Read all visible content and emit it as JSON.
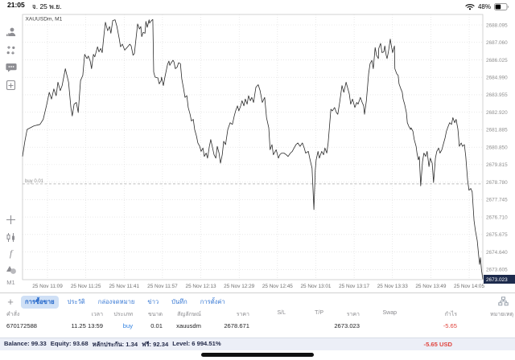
{
  "status_bar": {
    "time": "21:05",
    "date": "จ. 25 พ.ย.",
    "battery_pct": "48%"
  },
  "chart": {
    "symbol_label": "XAUUSDm, M1",
    "position_line_label": "buy 0.01",
    "current_price_badge": "2673.023"
  },
  "chart_data": {
    "type": "line",
    "title": "XAUUSDm, M1",
    "ylabel": "price",
    "xlabel": "time",
    "grid": true,
    "ylim": [
      2672.9,
      2688.75
    ],
    "y_ticks": [
      "2688.095",
      "2687.060",
      "2686.025",
      "2684.990",
      "2683.955",
      "2682.920",
      "2681.885",
      "2680.850",
      "2679.815",
      "2678.780",
      "2677.745",
      "2676.710",
      "2675.675",
      "2674.640",
      "2673.605"
    ],
    "x_ticks": [
      "25 Nov 11:09",
      "25 Nov 11:25",
      "25 Nov 11:41",
      "25 Nov 11:57",
      "25 Nov 12:13",
      "25 Nov 12:29",
      "25 Nov 12:45",
      "25 Nov 13:01",
      "25 Nov 13:17",
      "25 Nov 13:33",
      "25 Nov 13:49",
      "25 Nov 14:05"
    ],
    "annotations": [
      {
        "name": "open-position-line",
        "label": "buy 0.01",
        "price": 2678.671,
        "style": "dashed"
      },
      {
        "name": "current-price",
        "label": "2673.023",
        "price": 2673.023,
        "style": "badge"
      }
    ],
    "series": [
      {
        "name": "XAUUSDm M1 close",
        "color": "#2b2b2b",
        "points": [
          [
            0,
            2680.3
          ],
          [
            0.005,
            2681.2
          ],
          [
            0.01,
            2681.9
          ],
          [
            0.017,
            2682
          ],
          [
            0.024,
            2682.1
          ],
          [
            0.031,
            2682.15
          ],
          [
            0.038,
            2682.2
          ],
          [
            0.045,
            2682.5
          ],
          [
            0.052,
            2683.3
          ],
          [
            0.058,
            2684.1
          ],
          [
            0.063,
            2683.7
          ],
          [
            0.068,
            2684.3
          ],
          [
            0.073,
            2683.9
          ],
          [
            0.077,
            2684.7
          ],
          [
            0.082,
            2684.2
          ],
          [
            0.086,
            2684.5
          ],
          [
            0.093,
            2685.5
          ],
          [
            0.1,
            2684.7
          ],
          [
            0.105,
            2683.2
          ],
          [
            0.108,
            2682.7
          ],
          [
            0.112,
            2683.4
          ],
          [
            0.117,
            2683.5
          ],
          [
            0.121,
            2682.9
          ],
          [
            0.126,
            2684.8
          ],
          [
            0.131,
            2685.1
          ],
          [
            0.135,
            2686.35
          ],
          [
            0.14,
            2686.1
          ],
          [
            0.143,
            2686.25
          ],
          [
            0.147,
            2685.95
          ],
          [
            0.15,
            2685.5
          ],
          [
            0.154,
            2686.35
          ],
          [
            0.157,
            2686.2
          ],
          [
            0.163,
            2686.8
          ],
          [
            0.166,
            2686.5
          ],
          [
            0.17,
            2686.7
          ],
          [
            0.173,
            2686.45
          ],
          [
            0.177,
            2687.5
          ],
          [
            0.18,
            2688.25
          ],
          [
            0.185,
            2687.75
          ],
          [
            0.189,
            2688
          ],
          [
            0.192,
            2687.6
          ],
          [
            0.196,
            2688.35
          ],
          [
            0.201,
            2688.4
          ],
          [
            0.205,
            2688
          ],
          [
            0.21,
            2687.3
          ],
          [
            0.213,
            2686.8
          ],
          [
            0.217,
            2686.95
          ],
          [
            0.222,
            2686.6
          ],
          [
            0.227,
            2686.75
          ],
          [
            0.233,
            2686.95
          ],
          [
            0.236,
            2686.85
          ],
          [
            0.24,
            2686.3
          ],
          [
            0.243,
            2686.4
          ],
          [
            0.247,
            2687.4
          ],
          [
            0.25,
            2688.15
          ],
          [
            0.254,
            2687.85
          ],
          [
            0.257,
            2688
          ],
          [
            0.259,
            2687.4
          ],
          [
            0.262,
            2687.65
          ],
          [
            0.266,
            2687.6
          ],
          [
            0.268,
            2688.3
          ],
          [
            0.271,
            2687.95
          ],
          [
            0.275,
            2688.4
          ],
          [
            0.276,
            2688.2
          ],
          [
            0.28,
            2688.35
          ],
          [
            0.283,
            2688.42
          ],
          [
            0.285,
            2685.3
          ],
          [
            0.288,
            2685
          ],
          [
            0.294,
            2684.95
          ],
          [
            0.297,
            2684.6
          ],
          [
            0.301,
            2684.8
          ],
          [
            0.302,
            2685
          ],
          [
            0.306,
            2684.5
          ],
          [
            0.309,
            2684.95
          ],
          [
            0.315,
            2685.75
          ],
          [
            0.318,
            2685.95
          ],
          [
            0.32,
            2685.7
          ],
          [
            0.323,
            2685.85
          ],
          [
            0.327,
            2686
          ],
          [
            0.329,
            2685.9
          ],
          [
            0.332,
            2685.5
          ],
          [
            0.336,
            2685.6
          ],
          [
            0.339,
            2685.85
          ],
          [
            0.343,
            2685.8
          ],
          [
            0.346,
            2684.9
          ],
          [
            0.35,
            2684.3
          ],
          [
            0.353,
            2683.8
          ],
          [
            0.357,
            2683.9
          ],
          [
            0.36,
            2683.2
          ],
          [
            0.364,
            2682.8
          ],
          [
            0.367,
            2682.4
          ],
          [
            0.371,
            2682.5
          ],
          [
            0.374,
            2681.9
          ],
          [
            0.378,
            2681.5
          ],
          [
            0.381,
            2681.1
          ],
          [
            0.385,
            2680.9
          ],
          [
            0.388,
            2680.6
          ],
          [
            0.392,
            2680.8
          ],
          [
            0.395,
            2680.3
          ],
          [
            0.399,
            2680.5
          ],
          [
            0.402,
            2680.2
          ],
          [
            0.406,
            2680.9
          ],
          [
            0.409,
            2681.3
          ],
          [
            0.413,
            2680.8
          ],
          [
            0.416,
            2680.4
          ],
          [
            0.42,
            2680.2
          ],
          [
            0.423,
            2680.9
          ],
          [
            0.427,
            2680.5
          ],
          [
            0.43,
            2679.9
          ],
          [
            0.434,
            2680.4
          ],
          [
            0.437,
            2681.2
          ],
          [
            0.441,
            2681
          ],
          [
            0.446,
            2681.9
          ],
          [
            0.451,
            2682.3
          ],
          [
            0.456,
            2682.2
          ],
          [
            0.46,
            2682.7
          ],
          [
            0.463,
            2683
          ],
          [
            0.467,
            2683.3
          ],
          [
            0.47,
            2683
          ],
          [
            0.474,
            2683.3
          ],
          [
            0.477,
            2683.6
          ],
          [
            0.481,
            2683.3
          ],
          [
            0.484,
            2683.7
          ],
          [
            0.488,
            2683.4
          ],
          [
            0.491,
            2683.9
          ],
          [
            0.495,
            2683.6
          ],
          [
            0.498,
            2683.8
          ],
          [
            0.502,
            2683.5
          ],
          [
            0.507,
            2684.4
          ],
          [
            0.512,
            2684.55
          ],
          [
            0.516,
            2684.2
          ],
          [
            0.521,
            2683.5
          ],
          [
            0.526,
            2683.8
          ],
          [
            0.53,
            2682.6
          ],
          [
            0.535,
            2682
          ],
          [
            0.538,
            2680.7
          ],
          [
            0.542,
            2681
          ],
          [
            0.545,
            2680.4
          ],
          [
            0.551,
            2680.7
          ],
          [
            0.556,
            2680.2
          ],
          [
            0.559,
            2680.4
          ],
          [
            0.563,
            2680.5
          ],
          [
            0.568,
            2680.5
          ],
          [
            0.573,
            2680.4
          ],
          [
            0.577,
            2680.3
          ],
          [
            0.582,
            2680.5
          ],
          [
            0.586,
            2680.6
          ],
          [
            0.589,
            2680.75
          ],
          [
            0.594,
            2681
          ],
          [
            0.598,
            2681.1
          ],
          [
            0.603,
            2680.9
          ],
          [
            0.608,
            2681.1
          ],
          [
            0.612,
            2680.8
          ],
          [
            0.615,
            2680.5
          ],
          [
            0.621,
            2680.6
          ],
          [
            0.624,
            2680.2
          ],
          [
            0.629,
            2679.6
          ],
          [
            0.633,
            2677.15
          ],
          [
            0.636,
            2679.5
          ],
          [
            0.638,
            2680.1
          ],
          [
            0.642,
            2680.6
          ],
          [
            0.645,
            2680.2
          ],
          [
            0.65,
            2680.6
          ],
          [
            0.654,
            2680.4
          ],
          [
            0.657,
            2680.8
          ],
          [
            0.661,
            2680.5
          ],
          [
            0.664,
            2681.1
          ],
          [
            0.67,
            2683.1
          ],
          [
            0.673,
            2683
          ],
          [
            0.678,
            2683.2
          ],
          [
            0.682,
            2682.9
          ],
          [
            0.685,
            2682.8
          ],
          [
            0.689,
            2683.5
          ],
          [
            0.694,
            2684.5
          ],
          [
            0.698,
            2684.1
          ],
          [
            0.703,
            2684.7
          ],
          [
            0.706,
            2684.4
          ],
          [
            0.71,
            2684
          ],
          [
            0.713,
            2683.4
          ],
          [
            0.717,
            2683.7
          ],
          [
            0.722,
            2683.2
          ],
          [
            0.726,
            2683.5
          ],
          [
            0.729,
            2683.4
          ],
          [
            0.734,
            2683.8
          ],
          [
            0.738,
            2683.5
          ],
          [
            0.741,
            2683.3
          ],
          [
            0.743,
            2682.8
          ],
          [
            0.747,
            2683.6
          ],
          [
            0.752,
            2685.2
          ],
          [
            0.755,
            2685.8
          ],
          [
            0.759,
            2686
          ],
          [
            0.762,
            2685.5
          ],
          [
            0.766,
            2686.75
          ],
          [
            0.769,
            2686.3
          ],
          [
            0.773,
            2686.1
          ],
          [
            0.774,
            2686.7
          ],
          [
            0.778,
            2687
          ],
          [
            0.781,
            2686.45
          ],
          [
            0.785,
            2686.5
          ],
          [
            0.787,
            2686.85
          ],
          [
            0.79,
            2686.3
          ],
          [
            0.792,
            2686.1
          ],
          [
            0.795,
            2686.5
          ],
          [
            0.799,
            2687.25
          ],
          [
            0.801,
            2686.9
          ],
          [
            0.804,
            2686.45
          ],
          [
            0.808,
            2686.85
          ],
          [
            0.809,
            2685.5
          ],
          [
            0.813,
            2685.2
          ],
          [
            0.816,
            2685.1
          ],
          [
            0.818,
            2684.6
          ],
          [
            0.822,
            2684.3
          ],
          [
            0.825,
            2684.1
          ],
          [
            0.827,
            2683.7
          ],
          [
            0.83,
            2683.4
          ],
          [
            0.834,
            2682.9
          ],
          [
            0.836,
            2682.3
          ],
          [
            0.839,
            2682.1
          ],
          [
            0.843,
            2681.9
          ],
          [
            0.844,
            2682
          ],
          [
            0.848,
            2681.8
          ],
          [
            0.851,
            2681.3
          ],
          [
            0.855,
            2680.9
          ],
          [
            0.857,
            2680.5
          ],
          [
            0.86,
            2680.1
          ],
          [
            0.862,
            2680.3
          ],
          [
            0.865,
            2678.55
          ],
          [
            0.869,
            2680
          ],
          [
            0.872,
            2680.5
          ],
          [
            0.876,
            2680.3
          ],
          [
            0.879,
            2680.6
          ],
          [
            0.883,
            2679.7
          ],
          [
            0.886,
            2680.2
          ],
          [
            0.89,
            2679.9
          ],
          [
            0.893,
            2678.75
          ],
          [
            0.897,
            2680.2
          ],
          [
            0.9,
            2680.6
          ],
          [
            0.904,
            2680.8
          ],
          [
            0.907,
            2680.5
          ],
          [
            0.911,
            2680.7
          ],
          [
            0.914,
            2681
          ],
          [
            0.918,
            2681.4
          ],
          [
            0.921,
            2681.8
          ],
          [
            0.925,
            2682.1
          ],
          [
            0.928,
            2682.3
          ],
          [
            0.932,
            2682.2
          ],
          [
            0.935,
            2682.6
          ],
          [
            0.939,
            2682.3
          ],
          [
            0.942,
            2682.5
          ],
          [
            0.946,
            2681.9
          ],
          [
            0.949,
            2680.9
          ],
          [
            0.953,
            2681.1
          ],
          [
            0.956,
            2680.9
          ],
          [
            0.96,
            2681
          ],
          [
            0.963,
            2680.3
          ],
          [
            0.967,
            2678.9
          ],
          [
            0.97,
            2678.3
          ],
          [
            0.974,
            2678.4
          ],
          [
            0.977,
            2678.2
          ],
          [
            0.981,
            2676.5
          ],
          [
            0.984,
            2675.9
          ],
          [
            0.988,
            2675.3
          ],
          [
            0.991,
            2674.4
          ],
          [
            0.993,
            2673.9
          ],
          [
            0.995,
            2674.3
          ],
          [
            0.997,
            2673.6
          ],
          [
            1,
            2673.023
          ]
        ]
      }
    ]
  },
  "sidebar": {
    "icons": [
      "account-icon",
      "trade-icon",
      "chat-icon",
      "new-order-icon",
      "crosshair-icon",
      "chart-type-icon",
      "indicators-icon",
      "objects-icon"
    ],
    "timeframe": "M1"
  },
  "bottom_tabs": {
    "add_label": "+",
    "selected": "การซื้อขาย",
    "tabs": [
      "การซื้อขาย",
      "ประวัติ",
      "กล่องจดหมาย",
      "ข่าว",
      "บันทึก",
      "การตั้งค่า"
    ]
  },
  "positions_table": {
    "columns": [
      "คำสั่ง",
      "เวลา",
      "ประเภท",
      "ขนาด",
      "สัญลักษณ์",
      "ราคา",
      "S/L",
      "T/P",
      "ราคา",
      "Swap",
      "กำไร",
      "หมายเหตุ"
    ],
    "rows": [
      [
        "670172588",
        "11.25 13:59",
        "buy",
        "0.01",
        "xauusdm",
        "2678.671",
        "",
        "",
        "2673.023",
        "",
        "-5.65",
        ""
      ]
    ]
  },
  "account_bar": {
    "segments": [
      {
        "label": "Balance:",
        "value": "99.33"
      },
      {
        "label": "Equity:",
        "value": "93.68"
      },
      {
        "label": "หลักประกัน:",
        "value": "1.34"
      },
      {
        "label": "ฟรี:",
        "value": "92.34"
      },
      {
        "label": "Level:",
        "value": "6 994.51%"
      }
    ],
    "profit": "-5.65",
    "currency": "USD"
  },
  "colors": {
    "accent_blue": "#3577d4",
    "selected_tab_bg": "#cfe0f6",
    "buy_blue": "#2f80e0",
    "loss_red": "#e0443e",
    "price_badge_bg": "#1d2b4d",
    "grid_gray": "#dcdcdc",
    "line_black": "#2b2b2b"
  }
}
